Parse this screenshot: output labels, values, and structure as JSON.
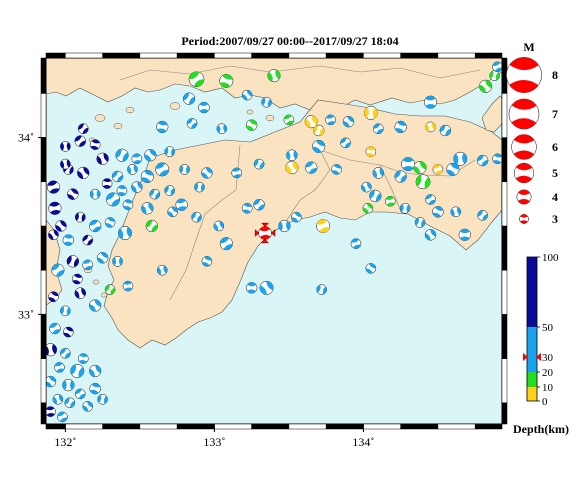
{
  "title": "Period:2007/09/27 00:00--2017/09/27 18:04",
  "map": {
    "lon_range": [
      131.87,
      134.93
    ],
    "lat_range": [
      32.38,
      34.45
    ],
    "x_ticks": [
      {
        "value": 132,
        "label": "132˚"
      },
      {
        "value": 133,
        "label": "133˚"
      },
      {
        "value": 134,
        "label": "134˚"
      }
    ],
    "y_ticks": [
      {
        "value": 33,
        "label": "33˚"
      },
      {
        "value": 34,
        "label": "34˚"
      }
    ],
    "colors": {
      "sea": "#d9f5f5",
      "land": "#fae3c0",
      "coast": "#555555",
      "frame_dark": "#000000"
    }
  },
  "magnitude_legend": {
    "title": "M",
    "items": [
      {
        "label": "8",
        "m": 8
      },
      {
        "label": "7",
        "m": 7
      },
      {
        "label": "6",
        "m": 6
      },
      {
        "label": "5",
        "m": 5
      },
      {
        "label": "4",
        "m": 4
      },
      {
        "label": "3",
        "m": 3
      }
    ]
  },
  "depth_scale": {
    "title": "Depth(km)",
    "ticks": [
      {
        "label": "100",
        "value": 100
      },
      {
        "label": "50",
        "value": 50
      },
      {
        "label": "30",
        "value": 30
      },
      {
        "label": "20",
        "value": 20
      },
      {
        "label": "10",
        "value": 10
      },
      {
        "label": "0",
        "value": 0
      }
    ],
    "bands": [
      {
        "from": 0,
        "to": 10,
        "color": "#ffd21a"
      },
      {
        "from": 10,
        "to": 20,
        "color": "#22dd22"
      },
      {
        "from": 20,
        "to": 50,
        "color": "#1aa3ee"
      },
      {
        "from": 50,
        "to": 100,
        "color": "#0a0a99"
      }
    ],
    "marker_depth": 30
  },
  "main_event": {
    "lon": 133.34,
    "lat": 33.46,
    "color": "#ff0000"
  },
  "events": [
    {
      "lon": 132.88,
      "lat": 34.33,
      "d": 15,
      "m": 3.6
    },
    {
      "lon": 133.08,
      "lat": 34.32,
      "d": 15,
      "m": 3.4
    },
    {
      "lon": 133.4,
      "lat": 34.35,
      "d": 18,
      "m": 3.3
    },
    {
      "lon": 132.83,
      "lat": 34.22,
      "d": 30,
      "m": 3.2
    },
    {
      "lon": 132.93,
      "lat": 34.17,
      "d": 35,
      "m": 3.1
    },
    {
      "lon": 133.22,
      "lat": 34.24,
      "d": 35,
      "m": 3.0
    },
    {
      "lon": 133.35,
      "lat": 34.2,
      "d": 30,
      "m": 3.0
    },
    {
      "lon": 133.5,
      "lat": 34.1,
      "d": 10,
      "m": 3.0
    },
    {
      "lon": 133.25,
      "lat": 34.07,
      "d": 15,
      "m": 3.1
    },
    {
      "lon": 133.05,
      "lat": 34.05,
      "d": 35,
      "m": 3.0
    },
    {
      "lon": 132.85,
      "lat": 34.08,
      "d": 25,
      "m": 3.0
    },
    {
      "lon": 132.65,
      "lat": 34.06,
      "d": 30,
      "m": 3.2
    },
    {
      "lon": 133.65,
      "lat": 34.09,
      "d": 8,
      "m": 3.3
    },
    {
      "lon": 133.7,
      "lat": 34.04,
      "d": 5,
      "m": 3.1
    },
    {
      "lon": 133.78,
      "lat": 34.1,
      "d": 35,
      "m": 3.0
    },
    {
      "lon": 133.9,
      "lat": 34.09,
      "d": 35,
      "m": 3.1
    },
    {
      "lon": 134.05,
      "lat": 34.14,
      "d": 6,
      "m": 3.4
    },
    {
      "lon": 134.1,
      "lat": 34.05,
      "d": 35,
      "m": 3.0
    },
    {
      "lon": 134.25,
      "lat": 34.06,
      "d": 35,
      "m": 3.2
    },
    {
      "lon": 134.45,
      "lat": 34.06,
      "d": 8,
      "m": 3.0
    },
    {
      "lon": 134.55,
      "lat": 34.04,
      "d": 35,
      "m": 3.1
    },
    {
      "lon": 134.45,
      "lat": 34.2,
      "d": 35,
      "m": 3.3
    },
    {
      "lon": 134.82,
      "lat": 34.29,
      "d": 15,
      "m": 3.3
    },
    {
      "lon": 134.88,
      "lat": 34.35,
      "d": 15,
      "m": 3.0
    },
    {
      "lon": 134.9,
      "lat": 34.4,
      "d": 35,
      "m": 3.0
    },
    {
      "lon": 133.7,
      "lat": 33.95,
      "d": 35,
      "m": 3.3
    },
    {
      "lon": 133.52,
      "lat": 33.9,
      "d": 35,
      "m": 3.1
    },
    {
      "lon": 133.88,
      "lat": 33.97,
      "d": 35,
      "m": 3.0
    },
    {
      "lon": 134.05,
      "lat": 33.92,
      "d": 8,
      "m": 3.0
    },
    {
      "lon": 133.52,
      "lat": 33.83,
      "d": 7,
      "m": 3.3
    },
    {
      "lon": 133.3,
      "lat": 33.85,
      "d": 35,
      "m": 3.0
    },
    {
      "lon": 133.15,
      "lat": 33.8,
      "d": 35,
      "m": 3.0
    },
    {
      "lon": 132.95,
      "lat": 33.8,
      "d": 35,
      "m": 3.1
    },
    {
      "lon": 132.8,
      "lat": 33.82,
      "d": 35,
      "m": 3.0
    },
    {
      "lon": 133.65,
      "lat": 33.83,
      "d": 35,
      "m": 3.2
    },
    {
      "lon": 133.82,
      "lat": 33.82,
      "d": 35,
      "m": 3.0
    },
    {
      "lon": 134.1,
      "lat": 33.8,
      "d": 35,
      "m": 3.1
    },
    {
      "lon": 134.25,
      "lat": 33.78,
      "d": 35,
      "m": 3.2
    },
    {
      "lon": 134.3,
      "lat": 33.85,
      "d": 35,
      "m": 3.4
    },
    {
      "lon": 134.38,
      "lat": 33.83,
      "d": 15,
      "m": 3.3
    },
    {
      "lon": 134.4,
      "lat": 33.75,
      "d": 15,
      "m": 3.5
    },
    {
      "lon": 134.5,
      "lat": 33.82,
      "d": 8,
      "m": 3.0
    },
    {
      "lon": 134.6,
      "lat": 33.82,
      "d": 35,
      "m": 3.3
    },
    {
      "lon": 134.65,
      "lat": 33.88,
      "d": 35,
      "m": 3.4
    },
    {
      "lon": 134.8,
      "lat": 33.87,
      "d": 35,
      "m": 3.1
    },
    {
      "lon": 134.9,
      "lat": 33.88,
      "d": 35,
      "m": 3.0
    },
    {
      "lon": 134.02,
      "lat": 33.72,
      "d": 35,
      "m": 3.0
    },
    {
      "lon": 134.08,
      "lat": 33.67,
      "d": 35,
      "m": 3.2
    },
    {
      "lon": 134.18,
      "lat": 33.64,
      "d": 15,
      "m": 3.0
    },
    {
      "lon": 134.03,
      "lat": 33.6,
      "d": 15,
      "m": 3.0
    },
    {
      "lon": 134.28,
      "lat": 33.6,
      "d": 35,
      "m": 3.0
    },
    {
      "lon": 134.45,
      "lat": 33.65,
      "d": 35,
      "m": 3.0
    },
    {
      "lon": 134.5,
      "lat": 33.58,
      "d": 35,
      "m": 3.1
    },
    {
      "lon": 134.62,
      "lat": 33.58,
      "d": 35,
      "m": 3.0
    },
    {
      "lon": 134.8,
      "lat": 33.56,
      "d": 35,
      "m": 3.0
    },
    {
      "lon": 134.68,
      "lat": 33.45,
      "d": 35,
      "m": 3.2
    },
    {
      "lon": 134.45,
      "lat": 33.45,
      "d": 35,
      "m": 3.1
    },
    {
      "lon": 134.38,
      "lat": 33.52,
      "d": 35,
      "m": 3.0
    },
    {
      "lon": 133.73,
      "lat": 33.5,
      "d": 8,
      "m": 3.4
    },
    {
      "lon": 133.55,
      "lat": 33.55,
      "d": 35,
      "m": 3.0
    },
    {
      "lon": 133.47,
      "lat": 33.5,
      "d": 35,
      "m": 3.2
    },
    {
      "lon": 133.3,
      "lat": 33.62,
      "d": 35,
      "m": 3.1
    },
    {
      "lon": 133.22,
      "lat": 33.6,
      "d": 35,
      "m": 3.0
    },
    {
      "lon": 133.03,
      "lat": 33.5,
      "d": 35,
      "m": 3.0
    },
    {
      "lon": 132.88,
      "lat": 33.55,
      "d": 35,
      "m": 3.0
    },
    {
      "lon": 132.78,
      "lat": 33.62,
      "d": 35,
      "m": 3.2
    },
    {
      "lon": 132.72,
      "lat": 33.58,
      "d": 35,
      "m": 3.0
    },
    {
      "lon": 132.9,
      "lat": 33.72,
      "d": 35,
      "m": 3.0
    },
    {
      "lon": 133.08,
      "lat": 33.4,
      "d": 35,
      "m": 3.3
    },
    {
      "lon": 132.95,
      "lat": 33.3,
      "d": 35,
      "m": 3.0
    },
    {
      "lon": 132.65,
      "lat": 33.25,
      "d": 35,
      "m": 3.0
    },
    {
      "lon": 132.58,
      "lat": 33.5,
      "d": 18,
      "m": 3.2
    },
    {
      "lon": 133.25,
      "lat": 33.15,
      "d": 35,
      "m": 3.1
    },
    {
      "lon": 133.35,
      "lat": 33.15,
      "d": 35,
      "m": 3.4
    },
    {
      "lon": 133.72,
      "lat": 33.14,
      "d": 25,
      "m": 3.0
    },
    {
      "lon": 133.95,
      "lat": 33.4,
      "d": 25,
      "m": 3.0
    },
    {
      "lon": 134.05,
      "lat": 33.26,
      "d": 25,
      "m": 3.0
    },
    {
      "lon": 132.0,
      "lat": 33.95,
      "d": 60,
      "m": 3.0
    },
    {
      "lon": 132.1,
      "lat": 33.98,
      "d": 60,
      "m": 3.1
    },
    {
      "lon": 132.2,
      "lat": 33.96,
      "d": 60,
      "m": 3.0
    },
    {
      "lon": 132.25,
      "lat": 33.88,
      "d": 60,
      "m": 3.2
    },
    {
      "lon": 132.38,
      "lat": 33.9,
      "d": 35,
      "m": 3.3
    },
    {
      "lon": 132.48,
      "lat": 33.88,
      "d": 35,
      "m": 3.0
    },
    {
      "lon": 132.57,
      "lat": 33.9,
      "d": 35,
      "m": 3.2
    },
    {
      "lon": 132.7,
      "lat": 33.92,
      "d": 35,
      "m": 3.0
    },
    {
      "lon": 132.65,
      "lat": 33.82,
      "d": 35,
      "m": 3.4
    },
    {
      "lon": 132.55,
      "lat": 33.78,
      "d": 35,
      "m": 3.3
    },
    {
      "lon": 132.45,
      "lat": 33.82,
      "d": 35,
      "m": 3.0
    },
    {
      "lon": 132.35,
      "lat": 33.78,
      "d": 35,
      "m": 3.1
    },
    {
      "lon": 132.28,
      "lat": 33.74,
      "d": 60,
      "m": 3.0
    },
    {
      "lon": 132.12,
      "lat": 33.8,
      "d": 60,
      "m": 3.2
    },
    {
      "lon": 132.02,
      "lat": 33.82,
      "d": 60,
      "m": 3.0
    },
    {
      "lon": 131.92,
      "lat": 33.72,
      "d": 60,
      "m": 3.3
    },
    {
      "lon": 132.05,
      "lat": 33.68,
      "d": 60,
      "m": 3.1
    },
    {
      "lon": 132.2,
      "lat": 33.68,
      "d": 35,
      "m": 3.0
    },
    {
      "lon": 132.32,
      "lat": 33.65,
      "d": 35,
      "m": 3.4
    },
    {
      "lon": 132.42,
      "lat": 33.62,
      "d": 35,
      "m": 3.0
    },
    {
      "lon": 132.55,
      "lat": 33.6,
      "d": 35,
      "m": 3.2
    },
    {
      "lon": 132.6,
      "lat": 33.68,
      "d": 35,
      "m": 3.0
    },
    {
      "lon": 131.93,
      "lat": 33.6,
      "d": 60,
      "m": 3.3
    },
    {
      "lon": 131.97,
      "lat": 33.5,
      "d": 60,
      "m": 3.1
    },
    {
      "lon": 132.1,
      "lat": 33.55,
      "d": 60,
      "m": 3.0
    },
    {
      "lon": 132.2,
      "lat": 33.5,
      "d": 35,
      "m": 3.2
    },
    {
      "lon": 132.3,
      "lat": 33.52,
      "d": 35,
      "m": 3.0
    },
    {
      "lon": 132.4,
      "lat": 33.46,
      "d": 35,
      "m": 3.4
    },
    {
      "lon": 132.15,
      "lat": 33.42,
      "d": 60,
      "m": 3.0
    },
    {
      "lon": 132.02,
      "lat": 33.42,
      "d": 35,
      "m": 3.1
    },
    {
      "lon": 131.92,
      "lat": 33.45,
      "d": 60,
      "m": 3.0
    },
    {
      "lon": 132.05,
      "lat": 33.3,
      "d": 60,
      "m": 3.2
    },
    {
      "lon": 132.15,
      "lat": 33.28,
      "d": 35,
      "m": 3.0
    },
    {
      "lon": 132.25,
      "lat": 33.32,
      "d": 35,
      "m": 3.1
    },
    {
      "lon": 132.35,
      "lat": 33.3,
      "d": 35,
      "m": 3.0
    },
    {
      "lon": 131.95,
      "lat": 33.25,
      "d": 35,
      "m": 3.3
    },
    {
      "lon": 132.08,
      "lat": 33.2,
      "d": 60,
      "m": 3.0
    },
    {
      "lon": 132.1,
      "lat": 33.12,
      "d": 60,
      "m": 3.1
    },
    {
      "lon": 132.3,
      "lat": 33.14,
      "d": 18,
      "m": 3.0
    },
    {
      "lon": 132.42,
      "lat": 33.16,
      "d": 35,
      "m": 3.0
    },
    {
      "lon": 132.2,
      "lat": 33.05,
      "d": 35,
      "m": 3.2
    },
    {
      "lon": 132.0,
      "lat": 33.02,
      "d": 35,
      "m": 3.0
    },
    {
      "lon": 131.93,
      "lat": 32.92,
      "d": 35,
      "m": 3.1
    },
    {
      "lon": 132.02,
      "lat": 32.9,
      "d": 60,
      "m": 3.0
    },
    {
      "lon": 131.9,
      "lat": 32.8,
      "d": 60,
      "m": 3.3
    },
    {
      "lon": 132.0,
      "lat": 32.78,
      "d": 35,
      "m": 3.0
    },
    {
      "lon": 132.12,
      "lat": 32.75,
      "d": 35,
      "m": 3.0
    },
    {
      "lon": 132.2,
      "lat": 32.68,
      "d": 35,
      "m": 3.2
    },
    {
      "lon": 132.08,
      "lat": 32.68,
      "d": 35,
      "m": 3.4
    },
    {
      "lon": 131.96,
      "lat": 32.7,
      "d": 35,
      "m": 3.0
    },
    {
      "lon": 131.9,
      "lat": 32.62,
      "d": 35,
      "m": 3.1
    },
    {
      "lon": 132.02,
      "lat": 32.6,
      "d": 35,
      "m": 3.2
    },
    {
      "lon": 132.1,
      "lat": 32.55,
      "d": 35,
      "m": 3.0
    },
    {
      "lon": 132.2,
      "lat": 32.58,
      "d": 35,
      "m": 3.1
    },
    {
      "lon": 131.95,
      "lat": 32.52,
      "d": 35,
      "m": 3.0
    },
    {
      "lon": 132.03,
      "lat": 32.5,
      "d": 25,
      "m": 3.0
    },
    {
      "lon": 131.9,
      "lat": 32.45,
      "d": 60,
      "m": 3.0
    },
    {
      "lon": 132.15,
      "lat": 32.48,
      "d": 35,
      "m": 3.0
    },
    {
      "lon": 132.25,
      "lat": 32.52,
      "d": 35,
      "m": 3.0
    },
    {
      "lon": 131.98,
      "lat": 32.42,
      "d": 25,
      "m": 3.0
    },
    {
      "lon": 131.92,
      "lat": 33.1,
      "d": 60,
      "m": 3.0
    },
    {
      "lon": 132.0,
      "lat": 33.85,
      "d": 60,
      "m": 3.0
    },
    {
      "lon": 132.12,
      "lat": 34.05,
      "d": 60,
      "m": 3.0
    },
    {
      "lon": 132.38,
      "lat": 33.7,
      "d": 35,
      "m": 3.0
    },
    {
      "lon": 132.48,
      "lat": 33.72,
      "d": 35,
      "m": 3.1
    },
    {
      "lon": 132.7,
      "lat": 33.7,
      "d": 35,
      "m": 3.0
    }
  ]
}
